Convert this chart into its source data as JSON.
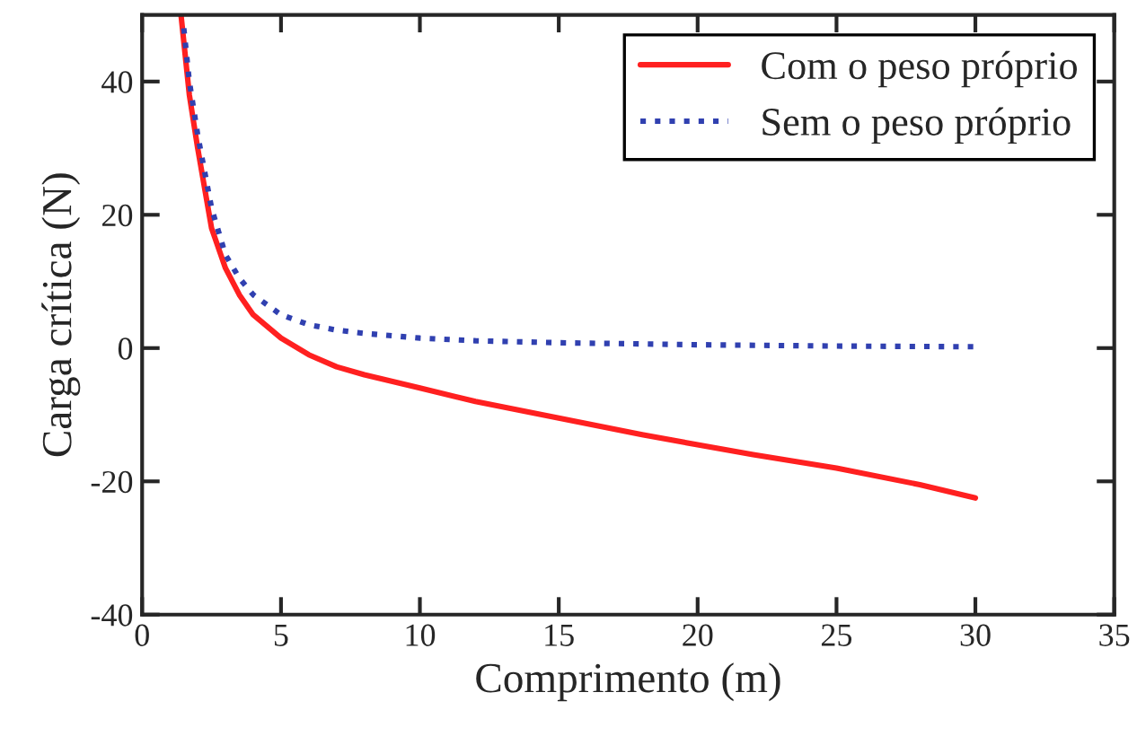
{
  "chart_data": {
    "type": "line",
    "xlabel": "Comprimento (m)",
    "ylabel": "Carga crítica (N)",
    "xlim": [
      0,
      35
    ],
    "xticks": [
      0,
      5,
      10,
      15,
      20,
      25,
      30,
      35
    ],
    "ylim": [
      -40,
      50
    ],
    "yticks": [
      -40,
      -20,
      0,
      20,
      40
    ],
    "grid": false,
    "legend": "top right",
    "series": [
      {
        "name": "Com o peso próprio",
        "color": "#ff2020",
        "line_style": "solid",
        "x": [
          1.4,
          1.7,
          2,
          2.5,
          3,
          3.5,
          4,
          5,
          6,
          7,
          8,
          10,
          12,
          15,
          18,
          20,
          22,
          25,
          28,
          30
        ],
        "values": [
          50,
          38,
          30,
          18,
          12,
          8,
          5,
          1.5,
          -1,
          -2.8,
          -4,
          -6,
          -8,
          -10.5,
          -13,
          -14.5,
          -16,
          -18,
          -20.5,
          -22.5
        ]
      },
      {
        "name": "Sem o peso próprio",
        "color": "#3040b0",
        "line_style": "dotted",
        "x": [
          1.5,
          1.7,
          2,
          2.5,
          3,
          3.5,
          4,
          5,
          6,
          7,
          8,
          10,
          12,
          15,
          20,
          25,
          30
        ],
        "values": [
          48,
          40,
          32,
          21,
          14,
          10.5,
          8,
          5,
          3.5,
          2.7,
          2.2,
          1.5,
          1.1,
          0.8,
          0.5,
          0.3,
          0.2
        ]
      }
    ]
  }
}
